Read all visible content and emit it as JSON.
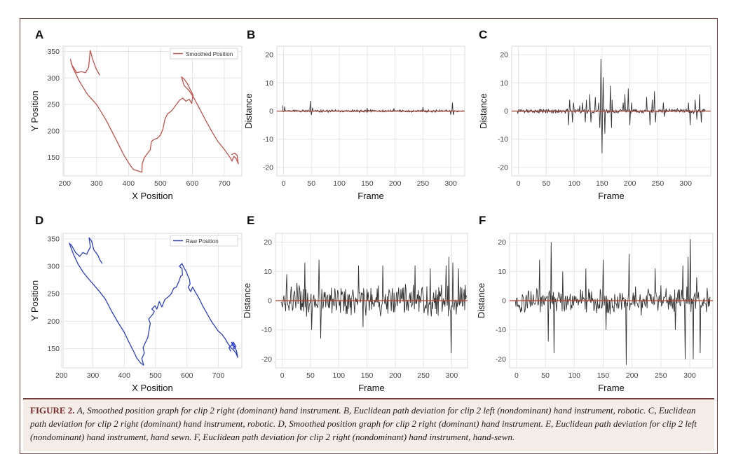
{
  "caption": {
    "figure_label": "FIGURE 2.",
    "text": "A, Smoothed position graph for clip 2 right (dominant) hand instrument. B, Euclidean path deviation for clip 2 left (nondominant) hand instrument, robotic. C, Euclidean path deviation for clip 2 right (dominant) hand instrument, robotic. D, Smoothed position graph for clip 2 right (dominant) hand instrument. E, Euclidean path deviation for clip 2 left (nondominant) hand instrument, hand sewn. F, Euclidean path deviation for clip 2 right (nondominant) hand instrument, hand-sewn."
  },
  "colors": {
    "border": "#7a3b3b",
    "smoothed": "#c8504a",
    "raw": "#2a3dd6",
    "signal": "#333333",
    "zero_line": "#c0392b",
    "grid": "#e6e6e6",
    "caption_bg": "#f4ece6"
  },
  "chart_data": [
    {
      "id": "A",
      "panel_label": "A",
      "type": "line",
      "xlabel": "X Position",
      "ylabel": "Y Position",
      "xlim": [
        195,
        755
      ],
      "ylim": [
        115,
        360
      ],
      "xticks": [
        200,
        300,
        400,
        500,
        600,
        700
      ],
      "yticks": [
        150,
        200,
        250,
        300,
        350
      ],
      "legend_position": "top-right",
      "grid": true,
      "series": [
        {
          "name": "Smoothed Position",
          "points": [
            [
              310,
              305
            ],
            [
              298,
              318
            ],
            [
              288,
              335
            ],
            [
              280,
              352
            ],
            [
              275,
              320
            ],
            [
              265,
              310
            ],
            [
              252,
              312
            ],
            [
              238,
              310
            ],
            [
              222,
              325
            ],
            [
              218,
              335
            ],
            [
              225,
              320
            ],
            [
              245,
              295
            ],
            [
              270,
              270
            ],
            [
              300,
              250
            ],
            [
              330,
              220
            ],
            [
              360,
              185
            ],
            [
              385,
              155
            ],
            [
              400,
              140
            ],
            [
              415,
              127
            ],
            [
              432,
              124
            ],
            [
              442,
              122
            ],
            [
              443,
              138
            ],
            [
              450,
              150
            ],
            [
              460,
              158
            ],
            [
              468,
              164
            ],
            [
              472,
              180
            ],
            [
              480,
              184
            ],
            [
              490,
              186
            ],
            [
              500,
              192
            ],
            [
              508,
              204
            ],
            [
              514,
              222
            ],
            [
              522,
              232
            ],
            [
              535,
              238
            ],
            [
              550,
              250
            ],
            [
              560,
              258
            ],
            [
              570,
              262
            ],
            [
              580,
              256
            ],
            [
              590,
              260
            ],
            [
              598,
              252
            ],
            [
              602,
              268
            ],
            [
              592,
              280
            ],
            [
              584,
              290
            ],
            [
              574,
              298
            ],
            [
              566,
              302
            ],
            [
              574,
              286
            ],
            [
              590,
              276
            ],
            [
              605,
              262
            ],
            [
              620,
              245
            ],
            [
              640,
              222
            ],
            [
              660,
              200
            ],
            [
              680,
              180
            ],
            [
              700,
              165
            ],
            [
              712,
              155
            ],
            [
              720,
              148
            ],
            [
              724,
              143
            ],
            [
              730,
              152
            ],
            [
              737,
              148
            ],
            [
              744,
              138
            ],
            [
              740,
              154
            ],
            [
              733,
              158
            ],
            [
              722,
              155
            ]
          ]
        }
      ]
    },
    {
      "id": "B",
      "panel_label": "B",
      "type": "line",
      "xlabel": "Frame",
      "ylabel": "Distance",
      "xlim": [
        -12,
        325
      ],
      "ylim": [
        -23,
        23
      ],
      "xticks": [
        0,
        50,
        100,
        150,
        200,
        250,
        300
      ],
      "yticks": [
        -20,
        -10,
        0,
        10,
        20
      ],
      "grid": true,
      "reference_line_y": 0,
      "amplitude": 0.5,
      "spikes": [
        [
          -2,
          2
        ],
        [
          2,
          1.6
        ],
        [
          48,
          3.6
        ],
        [
          50,
          -1.4
        ],
        [
          52,
          1.2
        ],
        [
          150,
          1.1
        ],
        [
          198,
          1.0
        ],
        [
          250,
          1.4
        ],
        [
          300,
          -1.3
        ],
        [
          303,
          3.0
        ],
        [
          305,
          -1.4
        ]
      ]
    },
    {
      "id": "C",
      "panel_label": "C",
      "type": "line",
      "xlabel": "Frame",
      "ylabel": "Distance",
      "xlim": [
        -12,
        345
      ],
      "ylim": [
        -23,
        23
      ],
      "xticks": [
        0,
        50,
        100,
        150,
        200,
        250,
        300
      ],
      "yticks": [
        -20,
        -10,
        0,
        10,
        20
      ],
      "grid": true,
      "reference_line_y": 0,
      "amplitude": 1.0,
      "spikes": [
        [
          90,
          -5
        ],
        [
          92,
          4
        ],
        [
          97,
          -4
        ],
        [
          99,
          3
        ],
        [
          110,
          2
        ],
        [
          115,
          3
        ],
        [
          120,
          -4
        ],
        [
          122,
          4
        ],
        [
          128,
          6
        ],
        [
          130,
          -4
        ],
        [
          138,
          5
        ],
        [
          144,
          3
        ],
        [
          146,
          -6
        ],
        [
          148,
          18.5
        ],
        [
          150,
          -15
        ],
        [
          152,
          12
        ],
        [
          155,
          -8
        ],
        [
          165,
          9
        ],
        [
          167,
          -6
        ],
        [
          168,
          4
        ],
        [
          188,
          3
        ],
        [
          191,
          6
        ],
        [
          197,
          8
        ],
        [
          200,
          -5
        ],
        [
          203,
          3
        ],
        [
          230,
          5
        ],
        [
          236,
          -5
        ],
        [
          240,
          4
        ],
        [
          244,
          7
        ],
        [
          246,
          -4
        ],
        [
          260,
          3
        ],
        [
          262,
          -2
        ],
        [
          305,
          3
        ],
        [
          308,
          -5
        ],
        [
          317,
          4
        ],
        [
          320,
          -3
        ],
        [
          325,
          6
        ],
        [
          328,
          -4
        ]
      ]
    },
    {
      "id": "D",
      "panel_label": "D",
      "type": "line",
      "xlabel": "X Position",
      "ylabel": "Y Position",
      "xlim": [
        205,
        775
      ],
      "ylim": [
        115,
        360
      ],
      "xticks": [
        200,
        300,
        400,
        500,
        600,
        700
      ],
      "yticks": [
        150,
        200,
        250,
        300,
        350
      ],
      "legend_position": "top-right",
      "grid": true,
      "series": [
        {
          "name": "Raw Position",
          "points": [
            [
              330,
              305
            ],
            [
              322,
              312
            ],
            [
              316,
              320
            ],
            [
              303,
              330
            ],
            [
              296,
              346
            ],
            [
              288,
              352
            ],
            [
              292,
              335
            ],
            [
              280,
              322
            ],
            [
              268,
              325
            ],
            [
              258,
              318
            ],
            [
              245,
              325
            ],
            [
              232,
              338
            ],
            [
              225,
              342
            ],
            [
              238,
              322
            ],
            [
              252,
              305
            ],
            [
              268,
              290
            ],
            [
              285,
              278
            ],
            [
              300,
              268
            ],
            [
              320,
              255
            ],
            [
              340,
              240
            ],
            [
              360,
              218
            ],
            [
              380,
              198
            ],
            [
              400,
              180
            ],
            [
              415,
              162
            ],
            [
              430,
              145
            ],
            [
              440,
              133
            ],
            [
              452,
              124
            ],
            [
              462,
              120
            ],
            [
              456,
              132
            ],
            [
              464,
              142
            ],
            [
              460,
              152
            ],
            [
              468,
              162
            ],
            [
              475,
              170
            ],
            [
              480,
              186
            ],
            [
              483,
              196
            ],
            [
              478,
              204
            ],
            [
              490,
              212
            ],
            [
              496,
              218
            ],
            [
              488,
              222
            ],
            [
              498,
              228
            ],
            [
              504,
              222
            ],
            [
              512,
              236
            ],
            [
              520,
              226
            ],
            [
              530,
              240
            ],
            [
              540,
              244
            ],
            [
              550,
              250
            ],
            [
              558,
              260
            ],
            [
              566,
              262
            ],
            [
              574,
              272
            ],
            [
              580,
              282
            ],
            [
              586,
              284
            ],
            [
              584,
              296
            ],
            [
              576,
              300
            ],
            [
              584,
              305
            ],
            [
              592,
              296
            ],
            [
              598,
              290
            ],
            [
              602,
              284
            ],
            [
              608,
              276
            ],
            [
              610,
              268
            ],
            [
              604,
              262
            ],
            [
              612,
              254
            ],
            [
              618,
              262
            ],
            [
              630,
              250
            ],
            [
              640,
              240
            ],
            [
              650,
              228
            ],
            [
              660,
              218
            ],
            [
              670,
              208
            ],
            [
              680,
              198
            ],
            [
              690,
              190
            ],
            [
              700,
              182
            ],
            [
              712,
              176
            ],
            [
              722,
              168
            ],
            [
              730,
              160
            ],
            [
              740,
              152
            ],
            [
              748,
              148
            ],
            [
              756,
              142
            ],
            [
              762,
              134
            ],
            [
              758,
              146
            ],
            [
              748,
              158
            ],
            [
              742,
              162
            ],
            [
              750,
              150
            ],
            [
              756,
              154
            ],
            [
              748,
              162
            ],
            [
              742,
              156
            ],
            [
              734,
              152
            ],
            [
              740,
              145
            ]
          ]
        }
      ]
    },
    {
      "id": "E",
      "panel_label": "E",
      "type": "line",
      "xlabel": "Frame",
      "ylabel": "Distance",
      "xlim": [
        -12,
        328
      ],
      "ylim": [
        -23,
        23
      ],
      "xticks": [
        0,
        50,
        100,
        150,
        200,
        250,
        300
      ],
      "yticks": [
        -20,
        -10,
        0,
        10,
        20
      ],
      "grid": true,
      "reference_line_y": 0,
      "amplitude": 6.5,
      "spikes": [
        [
          8,
          9
        ],
        [
          40,
          13
        ],
        [
          52,
          -10
        ],
        [
          65,
          14
        ],
        [
          68,
          -13
        ],
        [
          135,
          12
        ],
        [
          143,
          -9
        ],
        [
          178,
          12
        ],
        [
          235,
          12
        ],
        [
          262,
          11
        ],
        [
          290,
          12
        ],
        [
          295,
          15
        ],
        [
          299,
          -18
        ],
        [
          302,
          13
        ],
        [
          312,
          11
        ]
      ]
    },
    {
      "id": "F",
      "panel_label": "F",
      "type": "line",
      "xlabel": "Frame",
      "ylabel": "Distance",
      "xlim": [
        -12,
        340
      ],
      "ylim": [
        -23,
        23
      ],
      "xticks": [
        0,
        50,
        100,
        150,
        200,
        250,
        300
      ],
      "yticks": [
        -20,
        -10,
        0,
        10,
        20
      ],
      "grid": true,
      "reference_line_y": 0,
      "amplitude": 5.5,
      "spikes": [
        [
          40,
          14
        ],
        [
          55,
          -14
        ],
        [
          60,
          20
        ],
        [
          65,
          -18
        ],
        [
          80,
          10
        ],
        [
          120,
          11
        ],
        [
          150,
          14
        ],
        [
          155,
          -10
        ],
        [
          190,
          -22
        ],
        [
          195,
          16
        ],
        [
          240,
          11
        ],
        [
          275,
          -10
        ],
        [
          288,
          12
        ],
        [
          292,
          -20
        ],
        [
          297,
          15
        ],
        [
          301,
          21
        ],
        [
          306,
          -20
        ],
        [
          312,
          8
        ],
        [
          318,
          -18
        ]
      ]
    }
  ]
}
